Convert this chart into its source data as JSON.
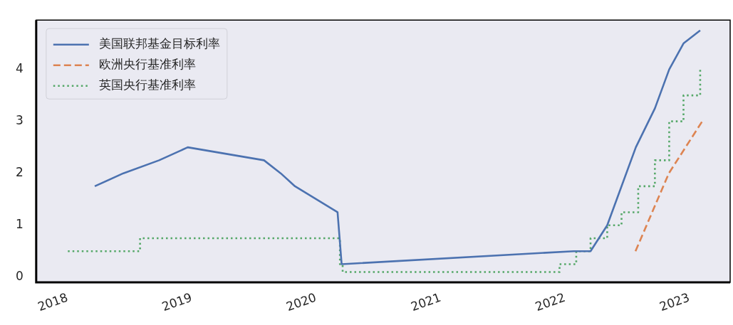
{
  "chart_data": {
    "type": "line",
    "legend": "top left",
    "grid": false,
    "marker": "none",
    "xlim": [
      "2017-10-01",
      "2023-05-01"
    ],
    "xticks": [
      {
        "value": "2018-01-01",
        "label": "2018"
      },
      {
        "value": "2019-01-01",
        "label": "2019"
      },
      {
        "value": "2020-01-01",
        "label": "2020"
      },
      {
        "value": "2021-01-01",
        "label": "2021"
      },
      {
        "value": "2022-01-01",
        "label": "2022"
      },
      {
        "value": "2023-01-01",
        "label": "2023"
      }
    ],
    "ylim": [
      -0.1,
      4.95
    ],
    "yticks": [
      0,
      1,
      2,
      3,
      4
    ],
    "series": [
      {
        "name": "美国联邦基金目标利率",
        "type": "line",
        "line_style": "solid",
        "color": "#4c72b0",
        "x": [
          "2018-03-22",
          "2018-06-14",
          "2018-09-27",
          "2018-12-20",
          "2019-08-01",
          "2019-09-19",
          "2019-10-31",
          "2020-03-04",
          "2020-03-16",
          "2022-01-27",
          "2022-03-17",
          "2022-05-05",
          "2022-07-28",
          "2022-09-22",
          "2022-11-03",
          "2022-12-15",
          "2023-02-02"
        ],
        "values": [
          1.75,
          2.0,
          2.25,
          2.5,
          2.25,
          2.0,
          1.75,
          1.25,
          0.25,
          0.5,
          0.5,
          1.0,
          2.5,
          3.25,
          4.0,
          4.5,
          4.75
        ]
      },
      {
        "name": "欧洲央行基准利率",
        "type": "line",
        "line_style": "dashed",
        "color": "#dd8452",
        "x": [
          "2022-07-27",
          "2022-11-02",
          "2023-02-08"
        ],
        "values": [
          0.5,
          2.0,
          3.0
        ]
      },
      {
        "name": "英国央行基准利率",
        "type": "step",
        "line_style": "dotted",
        "color": "#55a868",
        "x": [
          "2018-01-02",
          "2018-08-02",
          "2020-03-11",
          "2020-03-19",
          "2021-12-16",
          "2022-02-03",
          "2022-03-17",
          "2022-05-05",
          "2022-06-16",
          "2022-08-04",
          "2022-09-22",
          "2022-11-03",
          "2022-12-15",
          "2023-02-02"
        ],
        "values": [
          0.5,
          0.75,
          0.25,
          0.1,
          0.25,
          0.5,
          0.75,
          1.0,
          1.25,
          1.75,
          2.25,
          3.0,
          3.5,
          4.0
        ]
      }
    ]
  }
}
